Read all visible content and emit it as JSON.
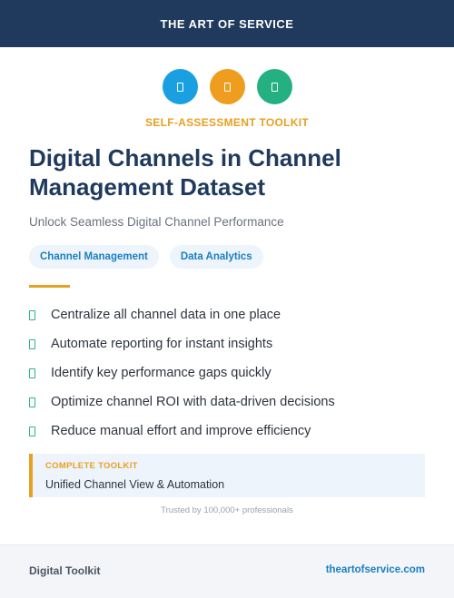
{
  "header": {
    "title": "THE ART OF SERVICE"
  },
  "icons": [
    {
      "name": "document-icon",
      "color": "#1aa0e0"
    },
    {
      "name": "document-icon",
      "color": "#ef9d1f"
    },
    {
      "name": "document-icon",
      "color": "#25b082"
    }
  ],
  "kicker": "SELF-ASSESSMENT TOOLKIT",
  "title": "Digital Channels in Channel Management Dataset",
  "subtitle": "Unlock Seamless Digital Channel Performance",
  "tags": [
    "Channel Management",
    "Data Analytics"
  ],
  "features": [
    "Centralize all channel data in one place",
    "Automate reporting for instant insights",
    "Identify key performance gaps quickly",
    "Optimize channel ROI with data-driven decisions",
    "Reduce manual effort and improve efficiency"
  ],
  "callout": {
    "label": "COMPLETE TOOLKIT",
    "value": "Unified Channel View & Automation"
  },
  "trusted": "Trusted by 100,000+ professionals",
  "footer": {
    "left": "Digital Toolkit",
    "right": "theartofservice.com"
  },
  "colors": {
    "navy": "#1f3a5c",
    "orange": "#e8a021",
    "green": "#2bb38b",
    "blue": "#1a7fc1"
  }
}
